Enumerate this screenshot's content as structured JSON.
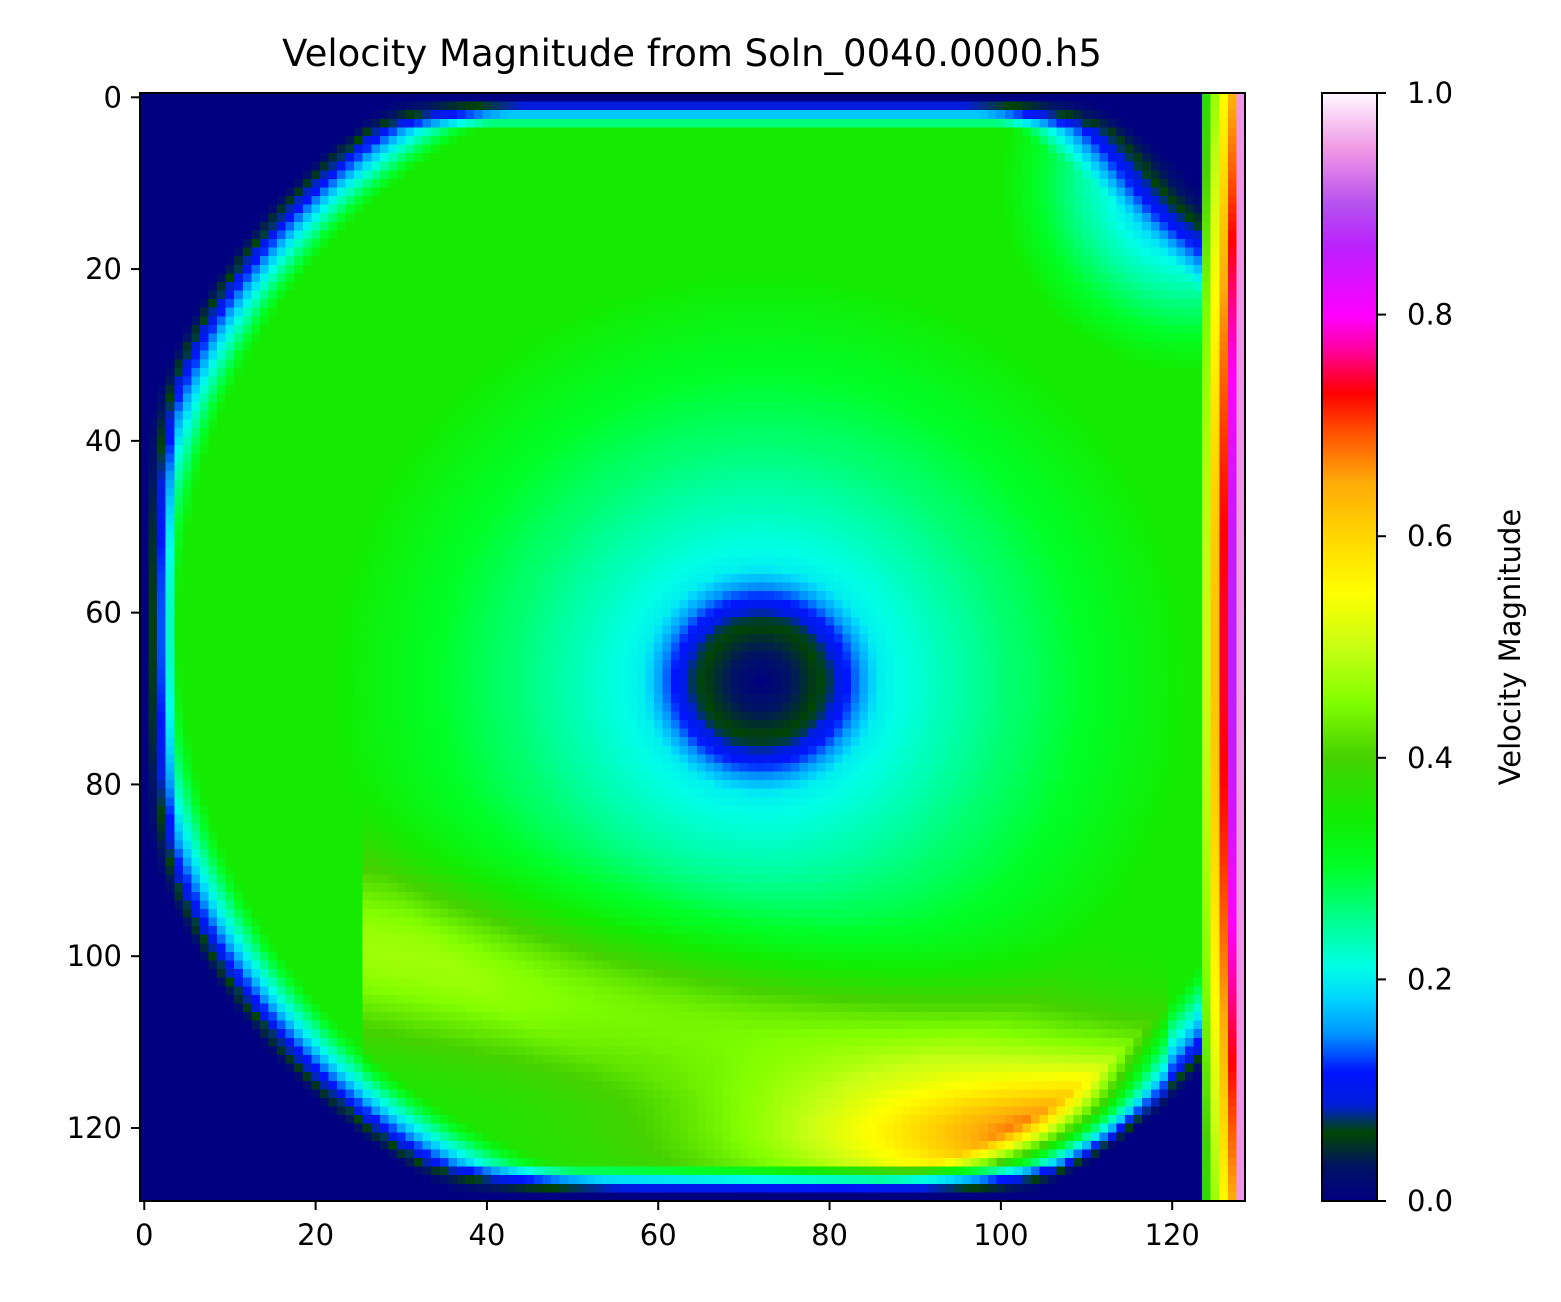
{
  "chart_data": {
    "type": "heatmap",
    "title": "Velocity Magnitude from Soln_0040.0000.h5",
    "colormap": "gist_ncar",
    "grid": false,
    "x_ticks": [
      "0",
      "20",
      "40",
      "60",
      "80",
      "100",
      "120"
    ],
    "y_ticks": [
      "0",
      "20",
      "40",
      "60",
      "80",
      "100",
      "120"
    ],
    "xlim": [
      -0.5,
      128.5
    ],
    "ylim": [
      128.5,
      -0.5
    ],
    "nx": 129,
    "ny": 129,
    "colorbar": {
      "label": "Velocity Magnitude",
      "range": [
        0.0,
        1.0
      ],
      "ticks": [
        "0.0",
        "0.2",
        "0.4",
        "0.6",
        "0.8",
        "1.0"
      ]
    },
    "features": {
      "vortex_center": [
        72,
        68
      ],
      "vortex_center_value": 0.0,
      "lid_wall_value_max": 1.0,
      "lid_column": 128,
      "corner_dead_zones": [
        "top-left",
        "bottom-left"
      ],
      "secondary_vortex": "top-right",
      "high_speed_band": "bottom-right along row ~122",
      "high_speed_band_value": 0.62
    }
  }
}
